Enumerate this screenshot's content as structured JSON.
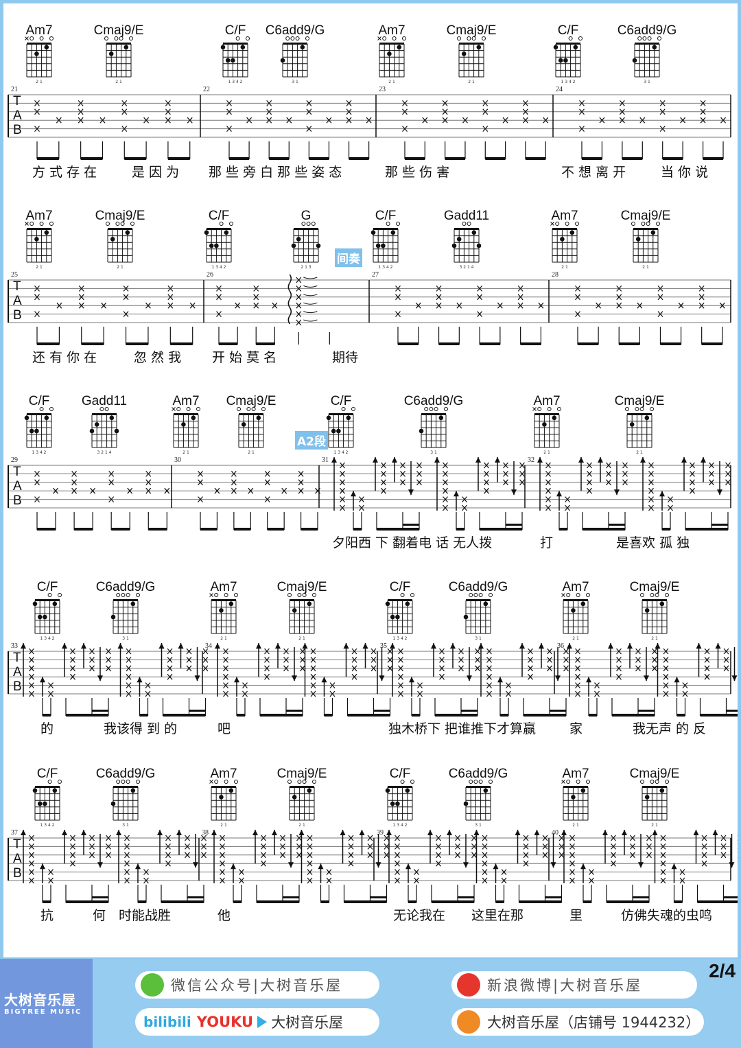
{
  "page_number": "2/4",
  "tab_letters": [
    "T",
    "A",
    "B"
  ],
  "chord_shapes": {
    "Am7": {
      "top": [
        "x",
        "o",
        "",
        "o",
        "",
        "o"
      ],
      "dots": [
        [
          4,
          2
        ],
        [
          2,
          1
        ]
      ],
      "fingers": "2 1"
    },
    "Cmaj9/E": {
      "top": [
        "o",
        "",
        "o",
        "o",
        "",
        "o"
      ],
      "dots": [
        [
          5,
          2
        ],
        [
          2,
          1
        ]
      ],
      "fingers": "2 1"
    },
    "C/F": {
      "top": [
        "",
        "",
        "",
        "o",
        "",
        "o"
      ],
      "dots": [
        [
          6,
          1
        ],
        [
          5,
          3
        ],
        [
          4,
          3
        ],
        [
          2,
          1
        ]
      ],
      "fingers": "1 3 4 2"
    },
    "C6add9/G": {
      "top": [
        "",
        "o",
        "o",
        "o",
        "",
        "o"
      ],
      "dots": [
        [
          6,
          3
        ],
        [
          2,
          1
        ]
      ],
      "fingers": "3 1"
    },
    "G": {
      "top": [
        "",
        "",
        "o",
        "o",
        "o",
        ""
      ],
      "dots": [
        [
          6,
          3
        ],
        [
          5,
          2
        ],
        [
          1,
          3
        ]
      ],
      "fingers": "2 1 3"
    },
    "Gadd11": {
      "top": [
        "",
        "",
        "o",
        "o",
        "",
        ""
      ],
      "dots": [
        [
          6,
          3
        ],
        [
          5,
          2
        ],
        [
          2,
          1
        ],
        [
          1,
          3
        ]
      ],
      "fingers": "3 2 1 4"
    }
  },
  "systems": [
    {
      "chords": [
        "Am7",
        "Cmaj9/E",
        "C/F",
        "C6add9/G",
        "Am7",
        "Cmaj9/E",
        "C/F",
        "C6add9/G"
      ],
      "measures": [
        {
          "number": "21",
          "pattern": "arpeggio"
        },
        {
          "number": "22",
          "pattern": "arpeggio"
        },
        {
          "number": "23",
          "pattern": "arpeggio"
        },
        {
          "number": "24",
          "pattern": "arpeggio"
        }
      ],
      "lyrics": [
        "方 式 存 在",
        "是 因 为",
        "那 些 旁 白 那 些 姿 态",
        "那 些 伤 害",
        "不 想 离 开",
        "当 你 说"
      ]
    },
    {
      "chords": [
        "Am7",
        "Cmaj9/E",
        "C/F",
        "G",
        "C/F",
        "Gadd11",
        "Am7",
        "Cmaj9/E"
      ],
      "measures": [
        {
          "number": "25",
          "pattern": "arpeggio"
        },
        {
          "number": "26",
          "pattern": "arpeggio-roll"
        },
        {
          "number": "27",
          "pattern": "arpeggio"
        },
        {
          "number": "28",
          "pattern": "arpeggio"
        }
      ],
      "lyrics": [
        "还 有 你 在",
        "忽 然 我",
        "开 始 莫 名",
        "期待"
      ],
      "section_label": "间奏"
    },
    {
      "chords": [
        "C/F",
        "Gadd11",
        "Am7",
        "Cmaj9/E",
        "C/F",
        "C6add9/G",
        "Am7",
        "Cmaj9/E"
      ],
      "measures": [
        {
          "number": "29",
          "pattern": "arpeggio"
        },
        {
          "number": "30",
          "pattern": "arpeggio"
        },
        {
          "number": "31",
          "pattern": "strum"
        },
        {
          "number": "32",
          "pattern": "strum"
        }
      ],
      "lyrics": [
        "夕阳西 下 翻着电 话 无人拨",
        "打",
        "是喜欢 孤 独"
      ],
      "section_label": "A2段"
    },
    {
      "chords": [
        "C/F",
        "C6add9/G",
        "Am7",
        "Cmaj9/E",
        "C/F",
        "C6add9/G",
        "Am7",
        "Cmaj9/E"
      ],
      "measures": [
        {
          "number": "33",
          "pattern": "strum"
        },
        {
          "number": "34",
          "pattern": "strum"
        },
        {
          "number": "35",
          "pattern": "strum"
        },
        {
          "number": "36",
          "pattern": "strum"
        }
      ],
      "lyrics": [
        "的",
        "我该得 到 的",
        "吧",
        "独木桥下 把谁推下才算赢",
        "家",
        "我无声 的 反"
      ]
    },
    {
      "chords": [
        "C/F",
        "C6add9/G",
        "Am7",
        "Cmaj9/E",
        "C/F",
        "C6add9/G",
        "Am7",
        "Cmaj9/E"
      ],
      "measures": [
        {
          "number": "37",
          "pattern": "strum"
        },
        {
          "number": "38",
          "pattern": "strum"
        },
        {
          "number": "39",
          "pattern": "strum"
        },
        {
          "number": "40",
          "pattern": "strum"
        }
      ],
      "lyrics": [
        "抗",
        "何",
        "时能战胜",
        "他",
        "无论我在",
        "这里在那",
        "里",
        "仿佛失魂的虫鸣"
      ]
    }
  ],
  "watermark": {
    "cn": "大树音乐屋",
    "en": "BIGTREE MUSIC"
  },
  "footer": {
    "brand_cn": "大树音乐屋",
    "brand_en": "BIGTREE MUSIC",
    "wechat": "微信公众号|大树音乐屋",
    "weibo": "新浪微博|大树音乐屋",
    "video_bilibili": "bilibili",
    "video_youku": "YOUKU",
    "video_name": "大树音乐屋",
    "taobao": "大树音乐屋（店铺号 1944232）"
  },
  "colors": {
    "frame": "#8fc8ee",
    "brand": "#7397dc",
    "section_label": "#7fc0ec"
  }
}
